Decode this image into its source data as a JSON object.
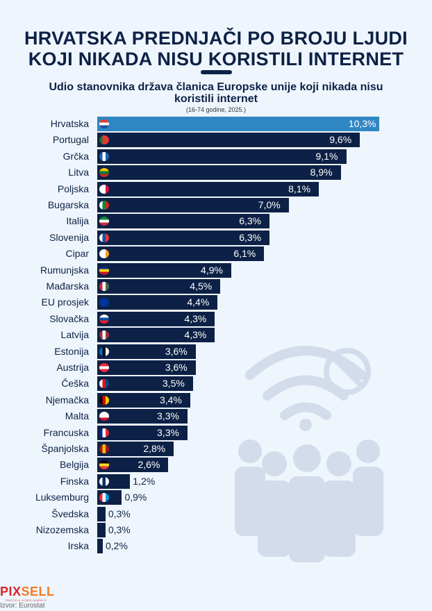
{
  "title": "HRVATSKA PREDNJAČI PO BROJU LJUDI KOJI NIKADA NISU KORISTILI INTERNET",
  "subtitle": "Udio stanovnika država članica Europske unije koji nikada nisu koristili internet",
  "note": "(16-74 godine, 2025.)",
  "source": "Izvor: Eurostat",
  "logo": {
    "part1": "PIX",
    "part2": "SELL",
    "tagline": "PHOTO & VIDEO AGENCY"
  },
  "colors": {
    "bar": "#0d2146",
    "highlight": "#2f86c3",
    "background": "#eef5fc"
  },
  "chart_data": {
    "type": "bar",
    "orientation": "horizontal",
    "unit": "%",
    "categories": [
      "Hrvatska",
      "Portugal",
      "Grčka",
      "Litva",
      "Poljska",
      "Bugarska",
      "Italija",
      "Slovenija",
      "Cipar",
      "Rumunjska",
      "Mađarska",
      "EU prosjek",
      "Slovačka",
      "Latvija",
      "Estonija",
      "Austrija",
      "Češka",
      "Njemačka",
      "Malta",
      "Francuska",
      "Španjolska",
      "Belgija",
      "Finska",
      "Luksemburg",
      "Švedska",
      "Nizozemska",
      "Irska"
    ],
    "values": [
      10.3,
      9.6,
      9.1,
      8.9,
      8.1,
      7.0,
      6.3,
      6.3,
      6.1,
      4.9,
      4.5,
      4.4,
      4.3,
      4.3,
      3.6,
      3.6,
      3.5,
      3.4,
      3.3,
      3.3,
      2.8,
      2.6,
      1.2,
      0.9,
      0.3,
      0.3,
      0.2
    ],
    "labels": [
      "10,3%",
      "9,6%",
      "9,1%",
      "8,9%",
      "8,1%",
      "7,0%",
      "6,3%",
      "6,3%",
      "6,1%",
      "4,9%",
      "4,5%",
      "4,4%",
      "4,3%",
      "4,3%",
      "3,6%",
      "3,6%",
      "3,5%",
      "3,4%",
      "3,3%",
      "3,3%",
      "2,8%",
      "2,6%",
      "1,2%",
      "0,9%",
      "0,3%",
      "0,3%",
      "0,2%"
    ],
    "highlight": "Hrvatska",
    "flags": [
      [
        "#e53935",
        "#fff",
        "#1e4fa0"
      ],
      [
        "#0a7a2f",
        "#e53935",
        "#e53935"
      ],
      [
        "#1e5fb5",
        "#fff",
        "#1e5fb5"
      ],
      [
        "#f7c600",
        "#0a7a2f",
        "#c62828"
      ],
      [
        "#fff",
        "#fff",
        "#dc143c"
      ],
      [
        "#fff",
        "#0a8a3a",
        "#d62612"
      ],
      [
        "#0a8a3a",
        "#fff",
        "#ce2b37"
      ],
      [
        "#fff",
        "#1e4fa0",
        "#e53935"
      ],
      [
        "#fff",
        "#fff",
        "#f0a030"
      ],
      [
        "#002b7f",
        "#fcd116",
        "#ce1126"
      ],
      [
        "#ce2939",
        "#fff",
        "#477050"
      ],
      [
        "#003399",
        "#003399",
        "#003399"
      ],
      [
        "#fff",
        "#0b4ea2",
        "#ee1c25"
      ],
      [
        "#9e3039",
        "#fff",
        "#9e3039"
      ],
      [
        "#0072ce",
        "#000",
        "#fff"
      ],
      [
        "#ed2939",
        "#fff",
        "#ed2939"
      ],
      [
        "#fff",
        "#d7141a",
        "#11457e"
      ],
      [
        "#000",
        "#dd0000",
        "#ffce00"
      ],
      [
        "#fff",
        "#fff",
        "#cf142b"
      ],
      [
        "#002395",
        "#fff",
        "#ed2939"
      ],
      [
        "#aa151b",
        "#f1bf00",
        "#aa151b"
      ],
      [
        "#000",
        "#fdda24",
        "#ef3340"
      ],
      [
        "#fff",
        "#002f6c",
        "#fff"
      ],
      [
        "#ed2939",
        "#fff",
        "#00a1de"
      ],
      [
        "#006aa7",
        "#fecc00",
        "#006aa7"
      ],
      [
        "#ae1c28",
        "#fff",
        "#21468b"
      ],
      [
        "#169b62",
        "#fff",
        "#ff883e"
      ]
    ]
  }
}
